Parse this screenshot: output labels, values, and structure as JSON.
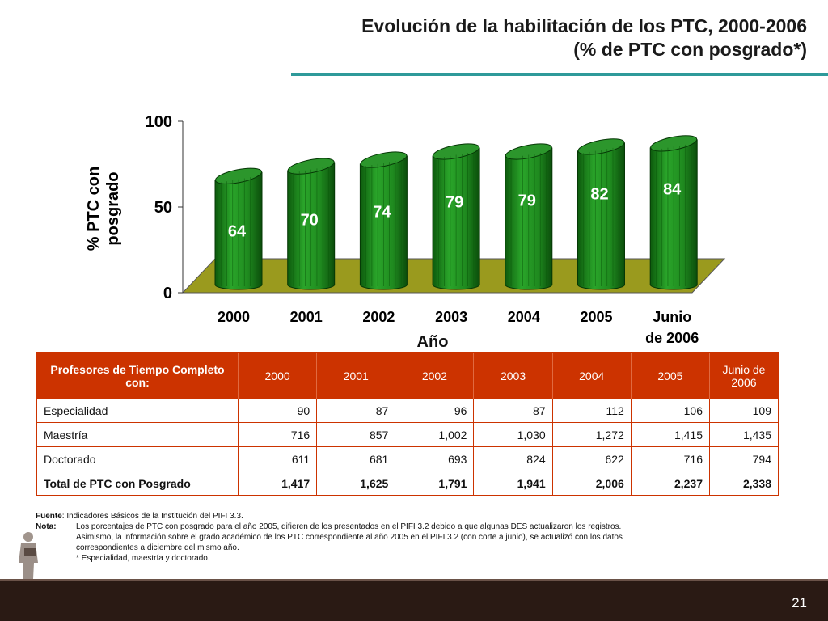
{
  "slide": {
    "title_line1": "Evolución de la habilitación de los PTC, 2000-2006",
    "title_line2": "(% de PTC con posgrado*)",
    "page_number": "21"
  },
  "chart_data": {
    "type": "bar",
    "categories": [
      "2000",
      "2001",
      "2002",
      "2003",
      "2004",
      "2005",
      "Junio de 2006"
    ],
    "values": [
      64,
      70,
      74,
      79,
      79,
      82,
      84
    ],
    "ylabel": "% PTC con posgrado",
    "ylabel_line1": "% PTC con",
    "ylabel_line2": "posgrado",
    "xlabel": "Año",
    "yticks": [
      0,
      50,
      100
    ],
    "ylim": [
      0,
      100
    ],
    "grid": false,
    "bar_color": "#1f8a1f",
    "floor_color": "#9a9a1e"
  },
  "table": {
    "header_label": "Profesores de Tiempo Completo con:",
    "years": [
      "2000",
      "2001",
      "2002",
      "2003",
      "2004",
      "2005",
      "Junio de 2006"
    ],
    "rows": [
      {
        "label": "Especialidad",
        "values": [
          "90",
          "87",
          "96",
          "87",
          "112",
          "106",
          "109"
        ]
      },
      {
        "label": "Maestría",
        "values": [
          "716",
          "857",
          "1,002",
          "1,030",
          "1,272",
          "1,415",
          "1,435"
        ]
      },
      {
        "label": "Doctorado",
        "values": [
          "611",
          "681",
          "693",
          "824",
          "622",
          "716",
          "794"
        ]
      },
      {
        "label": "Total de PTC con Posgrado",
        "values": [
          "1,417",
          "1,625",
          "1,791",
          "1,941",
          "2,006",
          "2,237",
          "2,338"
        ]
      }
    ]
  },
  "notes": {
    "fuente_label": "Fuente",
    "fuente_text": ":  Indicadores Básicos de la Institución del PIFI 3.3.",
    "nota_label": "Nota:",
    "nota_line1": "Los porcentajes de PTC con posgrado para el año 2005, difieren de los presentados en el PIFI 3.2 debido a que algunas DES actualizaron los registros.",
    "nota_line2": "Asimismo, la información sobre el grado académico de los PTC correspondiente al año 2005 en el PIFI 3.2 (con corte a junio), se actualizó con los datos",
    "nota_line3": "correspondientes a diciembre del mismo año.",
    "nota_line4": "* Especialidad, maestría y doctorado."
  }
}
